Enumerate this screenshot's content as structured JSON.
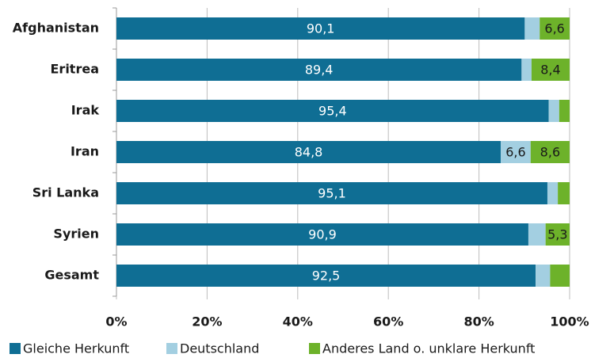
{
  "chart_data": {
    "type": "stacked-barh",
    "categories": [
      "Afghanistan",
      "Eritrea",
      "Irak",
      "Iran",
      "Sri Lanka",
      "Syrien",
      "Gesamt"
    ],
    "series": [
      {
        "name": "Gleiche Herkunft",
        "color": "#0f6e94",
        "values": [
          90.1,
          89.4,
          95.4,
          84.8,
          95.1,
          90.9,
          92.5
        ],
        "value_labels": [
          "90,1",
          "89,4",
          "95,4",
          "84,8",
          "95,1",
          "90,9",
          "92,5"
        ]
      },
      {
        "name": "Deutschland",
        "color": "#a3cfe1",
        "values": [
          3.3,
          2.2,
          2.3,
          6.6,
          2.3,
          3.8,
          3.2
        ],
        "value_labels": [
          null,
          null,
          null,
          "6,6",
          null,
          null,
          null
        ]
      },
      {
        "name": "Anderes Land o. unklare Herkunft",
        "color": "#6db22a",
        "values": [
          6.6,
          8.4,
          2.3,
          8.6,
          2.6,
          5.3,
          4.3
        ],
        "value_labels": [
          "6,6",
          "8,4",
          null,
          "8,6",
          null,
          "5,3",
          null
        ]
      }
    ],
    "xlim": [
      0,
      100
    ],
    "xticks": [
      {
        "value": 0,
        "label": "0%"
      },
      {
        "value": 20,
        "label": "20%"
      },
      {
        "value": 40,
        "label": "40%"
      },
      {
        "value": 60,
        "label": "60%"
      },
      {
        "value": 80,
        "label": "80%"
      },
      {
        "value": 100,
        "label": "100%"
      }
    ],
    "grid": true,
    "legend": "bottom"
  }
}
